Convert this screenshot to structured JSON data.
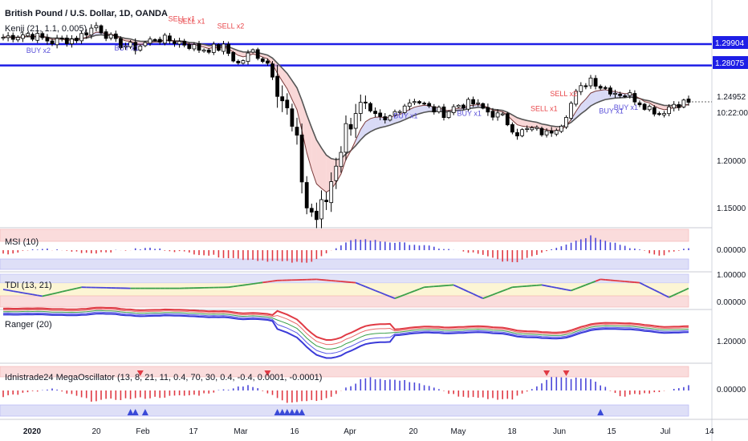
{
  "header": {
    "title": "British Pound / U.S. Dollar, 1D, OANDA",
    "kenji_label": "Kenji (21, 1.1, 0.005)"
  },
  "colors": {
    "up": "#ffffff",
    "down": "#000000",
    "hline": "#1e1ee6",
    "buy": "#5a50d8",
    "sell": "#e8464a",
    "pane_red": "#f7c6c6",
    "pane_blue": "#c9cbf2",
    "pane_yellow": "#fbf3c9",
    "ma_fast": "#7a3b3b",
    "ma_slow": "#555555"
  },
  "price_axis": {
    "ticks": [
      "1.29904",
      "1.28075",
      "1.24952",
      "1.20000",
      "1.15000"
    ],
    "countdown": "10:22:00"
  },
  "hlines": [
    1.29904,
    1.28075
  ],
  "last_price": 1.24952,
  "x_axis": {
    "labels": [
      "2020",
      "20",
      "Feb",
      "17",
      "Mar",
      "16",
      "Apr",
      "20",
      "May",
      "18",
      "Jun",
      "15",
      "Jul",
      "14"
    ]
  },
  "signals": [
    {
      "text": "BUY x2",
      "type": "buy",
      "date_index": 7,
      "price": 1.2915
    },
    {
      "text": "BUY x1",
      "type": "buy",
      "date_index": 25,
      "price": 1.2935
    },
    {
      "text": "SELL x1",
      "type": "sell",
      "date_index": 36,
      "price": 1.3185
    },
    {
      "text": "SELL x1",
      "type": "sell",
      "date_index": 38,
      "price": 1.3165
    },
    {
      "text": "SELL x2",
      "type": "sell",
      "date_index": 46,
      "price": 1.3125
    },
    {
      "text": "BUY x1",
      "type": "buy",
      "date_index": 82,
      "price": 1.2355
    },
    {
      "text": "BUY x1",
      "type": "buy",
      "date_index": 95,
      "price": 1.2375
    },
    {
      "text": "SELL x1",
      "type": "sell",
      "date_index": 110,
      "price": 1.2415
    },
    {
      "text": "SELL x2",
      "type": "sell",
      "date_index": 114,
      "price": 1.2545
    },
    {
      "text": "BUY x1",
      "type": "buy",
      "date_index": 124,
      "price": 1.2395
    },
    {
      "text": "BUY x1",
      "type": "buy",
      "date_index": 127,
      "price": 1.2425
    }
  ],
  "panes": [
    {
      "name": "MSI (10)",
      "ticks": [
        "0.00000"
      ]
    },
    {
      "name": "TDI (13, 21)",
      "ticks": [
        "1.00000",
        "0.00000"
      ]
    },
    {
      "name": "Ranger (20)",
      "ticks": [
        "1.20000"
      ]
    },
    {
      "name": "Idnistrade24 MegaOscillator (13, 8, 21, 11, 0.4, 70, 30, 0.4, -0.4, 0.0001, -0.0001)",
      "ticks": [
        "0.00000"
      ]
    }
  ],
  "chart_data": [
    {
      "type": "candlestick",
      "title": "British Pound / U.S. Dollar, 1D, OANDA",
      "x_labels": [
        "2020",
        "20",
        "Feb",
        "17",
        "Mar",
        "16",
        "Apr",
        "20",
        "May",
        "18",
        "Jun",
        "15",
        "Jul",
        "14"
      ],
      "ylim": [
        1.13,
        1.33
      ],
      "close_anchors": [
        [
          0,
          1.305
        ],
        [
          5,
          1.308
        ],
        [
          10,
          1.301
        ],
        [
          15,
          1.304
        ],
        [
          19,
          1.315
        ],
        [
          23,
          1.3
        ],
        [
          27,
          1.296
        ],
        [
          31,
          1.304
        ],
        [
          36,
          1.301
        ],
        [
          40,
          1.295
        ],
        [
          45,
          1.296
        ],
        [
          48,
          1.282
        ],
        [
          51,
          1.293
        ],
        [
          54,
          1.283
        ],
        [
          56,
          1.265
        ],
        [
          58,
          1.24
        ],
        [
          60,
          1.21
        ],
        [
          62,
          1.16
        ],
        [
          64,
          1.15
        ],
        [
          66,
          1.165
        ],
        [
          68,
          1.2
        ],
        [
          70,
          1.225
        ],
        [
          72,
          1.245
        ],
        [
          75,
          1.238
        ],
        [
          78,
          1.232
        ],
        [
          81,
          1.245
        ],
        [
          84,
          1.252
        ],
        [
          87,
          1.244
        ],
        [
          90,
          1.24
        ],
        [
          93,
          1.247
        ],
        [
          96,
          1.248
        ],
        [
          99,
          1.241
        ],
        [
          102,
          1.236
        ],
        [
          105,
          1.223
        ],
        [
          108,
          1.226
        ],
        [
          111,
          1.222
        ],
        [
          114,
          1.232
        ],
        [
          117,
          1.256
        ],
        [
          120,
          1.27
        ],
        [
          122,
          1.263
        ],
        [
          125,
          1.258
        ],
        [
          128,
          1.255
        ],
        [
          131,
          1.247
        ],
        [
          134,
          1.24
        ],
        [
          137,
          1.248
        ],
        [
          140,
          1.2495
        ]
      ],
      "hlines": [
        1.29904,
        1.28075
      ],
      "last_price": 1.24952
    },
    {
      "type": "bar",
      "title": "MSI (10)",
      "ylim": [
        -1,
        1
      ],
      "shape_anchors": [
        [
          0,
          -0.3
        ],
        [
          8,
          0.1
        ],
        [
          18,
          -0.2
        ],
        [
          30,
          0.15
        ],
        [
          48,
          -0.6
        ],
        [
          62,
          -0.9
        ],
        [
          72,
          0.8
        ],
        [
          84,
          0.4
        ],
        [
          96,
          -0.2
        ],
        [
          104,
          -0.9
        ],
        [
          112,
          0.1
        ],
        [
          120,
          1.0
        ],
        [
          128,
          0.2
        ],
        [
          134,
          -0.4
        ],
        [
          140,
          0.2
        ]
      ]
    },
    {
      "type": "line",
      "title": "TDI (13, 21)",
      "ylim": [
        0,
        1
      ],
      "shape_anchors": [
        [
          0,
          0.5
        ],
        [
          8,
          0.2
        ],
        [
          16,
          0.6
        ],
        [
          26,
          0.55
        ],
        [
          36,
          0.55
        ],
        [
          46,
          0.6
        ],
        [
          56,
          0.9
        ],
        [
          64,
          0.95
        ],
        [
          72,
          0.8
        ],
        [
          80,
          0.1
        ],
        [
          86,
          0.6
        ],
        [
          92,
          0.7
        ],
        [
          98,
          0.1
        ],
        [
          104,
          0.6
        ],
        [
          110,
          0.7
        ],
        [
          116,
          0.45
        ],
        [
          122,
          0.95
        ],
        [
          130,
          0.8
        ],
        [
          136,
          0.15
        ],
        [
          140,
          0.55
        ]
      ]
    },
    {
      "type": "line",
      "title": "Ranger (20)",
      "ylim": [
        1.1,
        1.35
      ]
    },
    {
      "type": "bar",
      "title": "Idnistrade24 MegaOscillator (13, 8, 21, 11, 0.4, 70, 30, 0.4, -0.4, 0.0001, -0.0001)",
      "ylim": [
        -1,
        1
      ],
      "shape_anchors": [
        [
          0,
          -0.4
        ],
        [
          10,
          0.1
        ],
        [
          18,
          -0.7
        ],
        [
          30,
          -0.5
        ],
        [
          40,
          -0.3
        ],
        [
          50,
          0.4
        ],
        [
          58,
          -0.8
        ],
        [
          66,
          -0.6
        ],
        [
          74,
          0.9
        ],
        [
          84,
          0.6
        ],
        [
          94,
          -0.5
        ],
        [
          104,
          -0.6
        ],
        [
          112,
          0.9
        ],
        [
          120,
          0.8
        ],
        [
          126,
          -0.4
        ],
        [
          132,
          -0.2
        ],
        [
          140,
          0.3
        ]
      ],
      "markers_down": [
        28,
        54,
        111,
        115
      ],
      "markers_up": [
        26,
        27,
        29,
        56,
        57,
        58,
        59,
        60,
        61,
        122
      ]
    }
  ]
}
